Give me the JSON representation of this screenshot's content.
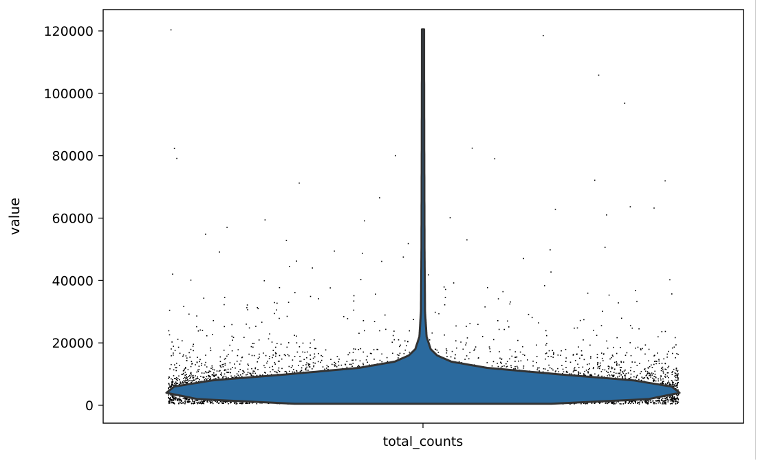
{
  "chart_data": {
    "type": "violin",
    "title": "",
    "xlabel": "",
    "ylabel": "value",
    "categories": [
      "total_counts"
    ],
    "ylim": [
      -5000,
      126000
    ],
    "yticks": [
      0,
      20000,
      40000,
      60000,
      80000,
      100000,
      120000
    ],
    "ytick_labels": [
      "0",
      "20000",
      "40000",
      "60000",
      "80000",
      "100000",
      "120000"
    ],
    "grid": false,
    "legend": "none",
    "violin": {
      "fill_color": "#2b6a9e",
      "edge_color": "#333333",
      "min": 500,
      "max": 120500,
      "density_profile": [
        {
          "value": 500,
          "relative_width": 0.5
        },
        {
          "value": 2000,
          "relative_width": 0.88
        },
        {
          "value": 4000,
          "relative_width": 1.0
        },
        {
          "value": 6000,
          "relative_width": 0.97
        },
        {
          "value": 8000,
          "relative_width": 0.82
        },
        {
          "value": 10000,
          "relative_width": 0.52
        },
        {
          "value": 12000,
          "relative_width": 0.25
        },
        {
          "value": 14000,
          "relative_width": 0.11
        },
        {
          "value": 16000,
          "relative_width": 0.055
        },
        {
          "value": 18000,
          "relative_width": 0.03
        },
        {
          "value": 22000,
          "relative_width": 0.014
        },
        {
          "value": 30000,
          "relative_width": 0.008
        },
        {
          "value": 50000,
          "relative_width": 0.006
        },
        {
          "value": 80000,
          "relative_width": 0.005
        },
        {
          "value": 120500,
          "relative_width": 0.004
        }
      ]
    },
    "points": {
      "color": "#000000",
      "approx_count": 9000,
      "note_values": [
        120500,
        118700,
        106000,
        97000,
        82600,
        82500,
        80200,
        79300,
        79200,
        72300,
        72100,
        71400,
        66700,
        63800,
        63400,
        63000,
        61200,
        60300,
        59600,
        59300,
        57200,
        55000,
        53200,
        53000,
        52000,
        50800,
        50000,
        49600,
        49300,
        48900,
        47700,
        47200,
        46400,
        46300,
        44700,
        44200,
        42900,
        42200,
        42000,
        40500,
        40400,
        40300,
        40100,
        39400,
        38500,
        38100,
        37900,
        37800,
        37300,
        37000,
        36300,
        36100,
        35800,
        35500,
        35300,
        34700,
        34500,
        34300,
        33500,
        33300,
        33100,
        33000,
        32900,
        32400,
        31500,
        30800,
        30300,
        30000,
        29600,
        29400,
        29100,
        28800,
        28700,
        28600,
        28300,
        27600,
        27300,
        27200,
        27000,
        26800,
        26600,
        26400,
        26100,
        25800,
        25600,
        25400,
        25300,
        24900,
        24500,
        24300,
        24000
      ]
    }
  }
}
